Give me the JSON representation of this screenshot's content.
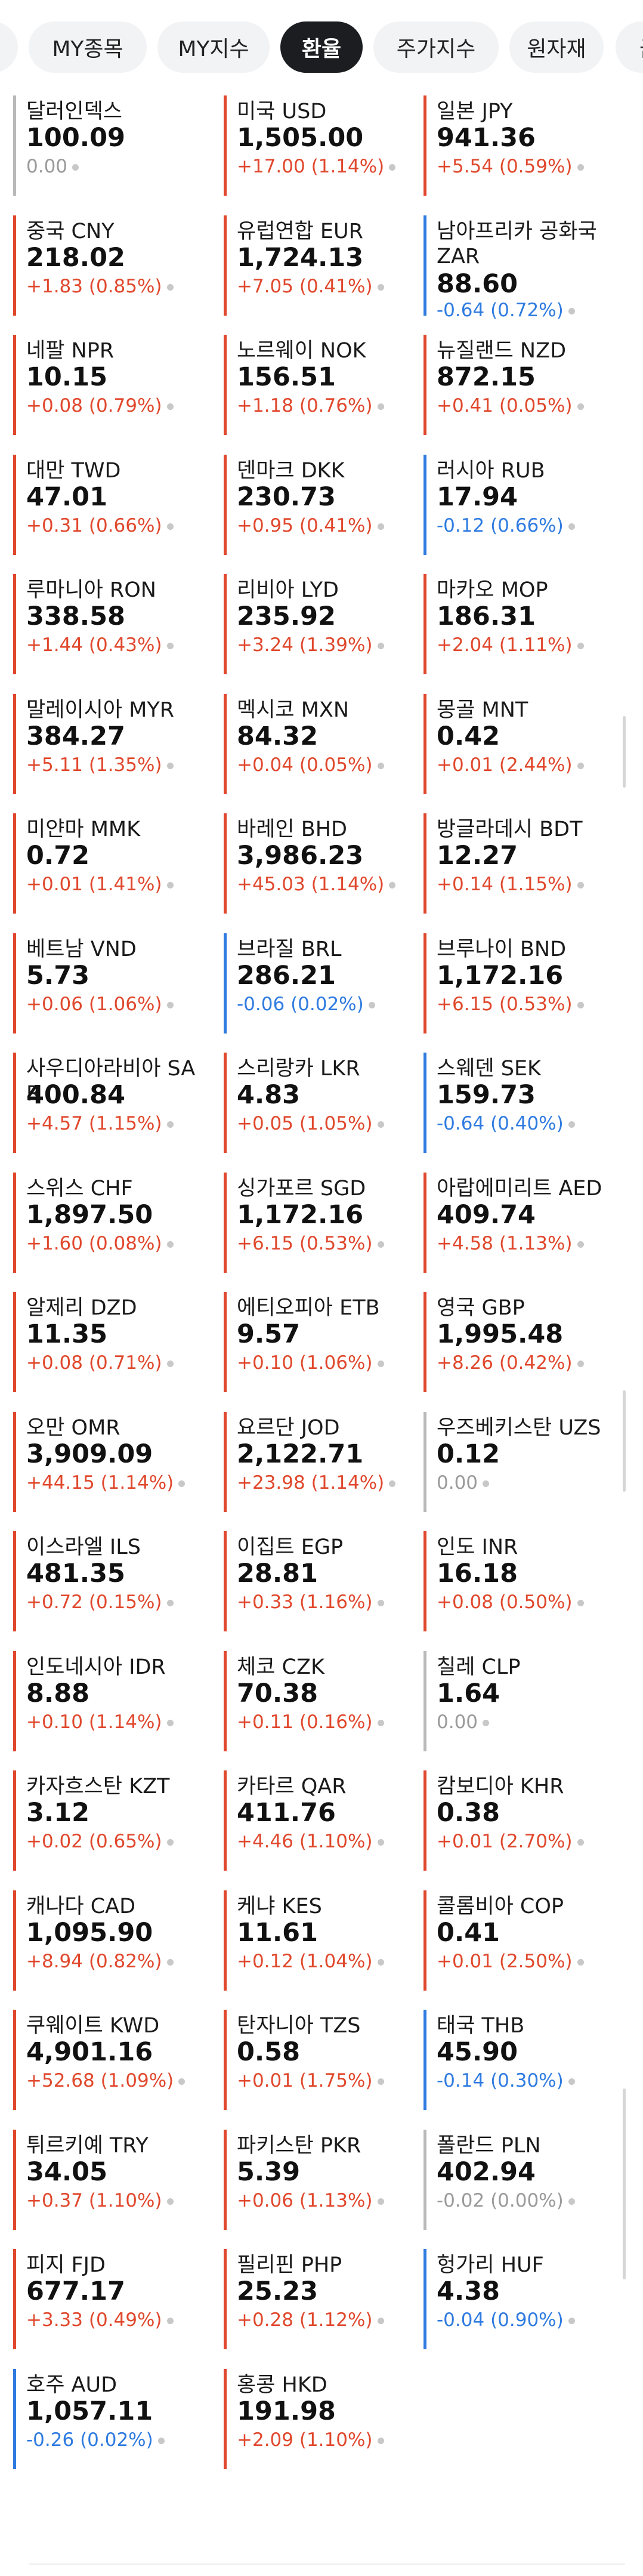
{
  "tabs": [
    {
      "label": "MY종목",
      "active": false
    },
    {
      "label": "MY지수",
      "active": false
    },
    {
      "label": "환율",
      "active": true
    },
    {
      "label": "주가지수",
      "active": false
    },
    {
      "label": "원자재",
      "active": false
    },
    {
      "label": "금",
      "active": false
    }
  ],
  "colors": {
    "up": "#e0482d",
    "down": "#2f7be0",
    "flat": "#9a9a9a"
  },
  "currencies": [
    {
      "name": "달러인덱스",
      "price": "100.09",
      "change": "0.00",
      "dir": "flat"
    },
    {
      "name": "미국 USD",
      "price": "1,505.00",
      "change": "+17.00 (1.14%)",
      "dir": "up"
    },
    {
      "name": "일본 JPY",
      "price": "941.36",
      "change": "+5.54 (0.59%)",
      "dir": "up"
    },
    {
      "name": "중국 CNY",
      "price": "218.02",
      "change": "+1.83 (0.85%)",
      "dir": "up"
    },
    {
      "name": "유럽연합 EUR",
      "price": "1,724.13",
      "change": "+7.05 (0.41%)",
      "dir": "up"
    },
    {
      "name": "남아프리카 공화국 ZAR",
      "price": "88.60",
      "change": "-0.64 (0.72%)",
      "dir": "down"
    },
    {
      "name": "네팔 NPR",
      "price": "10.15",
      "change": "+0.08 (0.79%)",
      "dir": "up"
    },
    {
      "name": "노르웨이 NOK",
      "price": "156.51",
      "change": "+1.18 (0.76%)",
      "dir": "up"
    },
    {
      "name": "뉴질랜드 NZD",
      "price": "872.15",
      "change": "+0.41 (0.05%)",
      "dir": "up"
    },
    {
      "name": "대만 TWD",
      "price": "47.01",
      "change": "+0.31 (0.66%)",
      "dir": "up"
    },
    {
      "name": "덴마크 DKK",
      "price": "230.73",
      "change": "+0.95 (0.41%)",
      "dir": "up"
    },
    {
      "name": "러시아 RUB",
      "price": "17.94",
      "change": "-0.12 (0.66%)",
      "dir": "down"
    },
    {
      "name": "루마니아 RON",
      "price": "338.58",
      "change": "+1.44 (0.43%)",
      "dir": "up"
    },
    {
      "name": "리비아 LYD",
      "price": "235.92",
      "change": "+3.24 (1.39%)",
      "dir": "up"
    },
    {
      "name": "마카오 MOP",
      "price": "186.31",
      "change": "+2.04 (1.11%)",
      "dir": "up"
    },
    {
      "name": "말레이시아 MYR",
      "price": "384.27",
      "change": "+5.11 (1.35%)",
      "dir": "up"
    },
    {
      "name": "멕시코 MXN",
      "price": "84.32",
      "change": "+0.04 (0.05%)",
      "dir": "up"
    },
    {
      "name": "몽골 MNT",
      "price": "0.42",
      "change": "+0.01 (2.44%)",
      "dir": "up"
    },
    {
      "name": "미얀마 MMK",
      "price": "0.72",
      "change": "+0.01 (1.41%)",
      "dir": "up"
    },
    {
      "name": "바레인 BHD",
      "price": "3,986.23",
      "change": "+45.03 (1.14%)",
      "dir": "up"
    },
    {
      "name": "방글라데시 BDT",
      "price": "12.27",
      "change": "+0.14 (1.15%)",
      "dir": "up"
    },
    {
      "name": "베트남 VND",
      "price": "5.73",
      "change": "+0.06 (1.06%)",
      "dir": "up"
    },
    {
      "name": "브라질 BRL",
      "price": "286.21",
      "change": "-0.06 (0.02%)",
      "dir": "down"
    },
    {
      "name": "브루나이 BND",
      "price": "1,172.16",
      "change": "+6.15 (0.53%)",
      "dir": "up"
    },
    {
      "name": "사우디아라비아 SAR",
      "price": "400.84",
      "change": "+4.57 (1.15%)",
      "dir": "up"
    },
    {
      "name": "스리랑카 LKR",
      "price": "4.83",
      "change": "+0.05 (1.05%)",
      "dir": "up"
    },
    {
      "name": "스웨덴 SEK",
      "price": "159.73",
      "change": "-0.64 (0.40%)",
      "dir": "down"
    },
    {
      "name": "스위스 CHF",
      "price": "1,897.50",
      "change": "+1.60 (0.08%)",
      "dir": "up"
    },
    {
      "name": "싱가포르 SGD",
      "price": "1,172.16",
      "change": "+6.15 (0.53%)",
      "dir": "up"
    },
    {
      "name": "아랍에미리트 AED",
      "price": "409.74",
      "change": "+4.58 (1.13%)",
      "dir": "up"
    },
    {
      "name": "알제리 DZD",
      "price": "11.35",
      "change": "+0.08 (0.71%)",
      "dir": "up"
    },
    {
      "name": "에티오피아 ETB",
      "price": "9.57",
      "change": "+0.10 (1.06%)",
      "dir": "up"
    },
    {
      "name": "영국 GBP",
      "price": "1,995.48",
      "change": "+8.26 (0.42%)",
      "dir": "up"
    },
    {
      "name": "오만 OMR",
      "price": "3,909.09",
      "change": "+44.15 (1.14%)",
      "dir": "up"
    },
    {
      "name": "요르단 JOD",
      "price": "2,122.71",
      "change": "+23.98 (1.14%)",
      "dir": "up"
    },
    {
      "name": "우즈베키스탄 UZS",
      "price": "0.12",
      "change": "0.00",
      "dir": "flat"
    },
    {
      "name": "이스라엘 ILS",
      "price": "481.35",
      "change": "+0.72 (0.15%)",
      "dir": "up"
    },
    {
      "name": "이집트 EGP",
      "price": "28.81",
      "change": "+0.33 (1.16%)",
      "dir": "up"
    },
    {
      "name": "인도 INR",
      "price": "16.18",
      "change": "+0.08 (0.50%)",
      "dir": "up"
    },
    {
      "name": "인도네시아 IDR",
      "price": "8.88",
      "change": "+0.10 (1.14%)",
      "dir": "up"
    },
    {
      "name": "체코 CZK",
      "price": "70.38",
      "change": "+0.11 (0.16%)",
      "dir": "up"
    },
    {
      "name": "칠레 CLP",
      "price": "1.64",
      "change": "0.00",
      "dir": "flat"
    },
    {
      "name": "카자흐스탄 KZT",
      "price": "3.12",
      "change": "+0.02 (0.65%)",
      "dir": "up"
    },
    {
      "name": "카타르 QAR",
      "price": "411.76",
      "change": "+4.46 (1.10%)",
      "dir": "up"
    },
    {
      "name": "캄보디아 KHR",
      "price": "0.38",
      "change": "+0.01 (2.70%)",
      "dir": "up"
    },
    {
      "name": "캐나다 CAD",
      "price": "1,095.90",
      "change": "+8.94 (0.82%)",
      "dir": "up"
    },
    {
      "name": "케냐 KES",
      "price": "11.61",
      "change": "+0.12 (1.04%)",
      "dir": "up"
    },
    {
      "name": "콜롬비아 COP",
      "price": "0.41",
      "change": "+0.01 (2.50%)",
      "dir": "up"
    },
    {
      "name": "쿠웨이트 KWD",
      "price": "4,901.16",
      "change": "+52.68 (1.09%)",
      "dir": "up"
    },
    {
      "name": "탄자니아 TZS",
      "price": "0.58",
      "change": "+0.01 (1.75%)",
      "dir": "up"
    },
    {
      "name": "태국 THB",
      "price": "45.90",
      "change": "-0.14 (0.30%)",
      "dir": "down"
    },
    {
      "name": "튀르키예 TRY",
      "price": "34.05",
      "change": "+0.37 (1.10%)",
      "dir": "up"
    },
    {
      "name": "파키스탄 PKR",
      "price": "5.39",
      "change": "+0.06 (1.13%)",
      "dir": "up"
    },
    {
      "name": "폴란드 PLN",
      "price": "402.94",
      "change": "-0.02 (0.00%)",
      "dir": "flat"
    },
    {
      "name": "피지 FJD",
      "price": "677.17",
      "change": "+3.33 (0.49%)",
      "dir": "up"
    },
    {
      "name": "필리핀 PHP",
      "price": "25.23",
      "change": "+0.28 (1.12%)",
      "dir": "up"
    },
    {
      "name": "헝가리 HUF",
      "price": "4.38",
      "change": "-0.04 (0.90%)",
      "dir": "down"
    },
    {
      "name": "호주 AUD",
      "price": "1,057.11",
      "change": "-0.26 (0.02%)",
      "dir": "down"
    },
    {
      "name": "홍콩 HKD",
      "price": "191.98",
      "change": "+2.09 (1.10%)",
      "dir": "up"
    }
  ]
}
